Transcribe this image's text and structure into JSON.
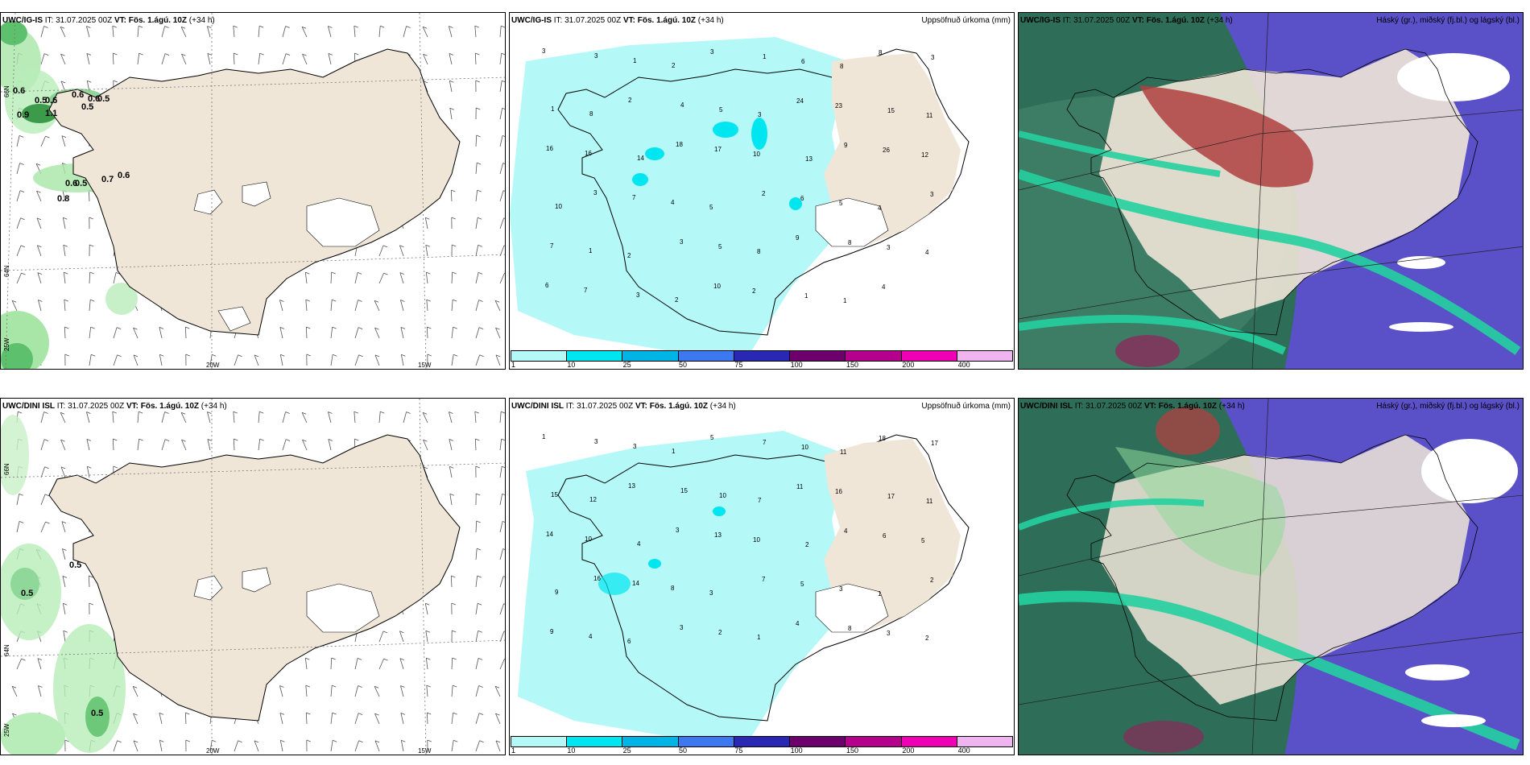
{
  "panels": [
    {
      "model": "UWC/IG-IS",
      "it_label": "IT:",
      "it": "31.07.2025 00Z",
      "vt_label": "VT:",
      "vt": "Fös. 1.ágú. 10Z",
      "lead": "(+34 h)",
      "right": ""
    },
    {
      "model": "UWC/IG-IS",
      "it_label": "IT:",
      "it": "31.07.2025 00Z",
      "vt_label": "VT:",
      "vt": "Fös. 1.ágú. 10Z",
      "lead": "(+34 h)",
      "right": "Uppsöfnuð úrkoma (mm)"
    },
    {
      "model": "UWC/IG-IS",
      "it_label": "IT:",
      "it": "31.07.2025 00Z",
      "vt_label": "VT:",
      "vt": "Fös. 1.ágú. 10Z",
      "lead": "(+34 h)",
      "right": "Háský (gr.), miðský (fj.bl.) og lágský (bl.)"
    },
    {
      "model": "UWC/DINI ISL",
      "it_label": "IT:",
      "it": "31.07.2025 00Z",
      "vt_label": "VT:",
      "vt": "Fös. 1.ágú. 10Z",
      "lead": "(+34 h)",
      "right": ""
    },
    {
      "model": "UWC/DINI ISL",
      "it_label": "IT:",
      "it": "31.07.2025 00Z",
      "vt_label": "VT:",
      "vt": "Fös. 1.ágú. 10Z",
      "lead": "(+34 h)",
      "right": "Uppsöfnuð úrkoma (mm)"
    },
    {
      "model": "UWC/DINI ISL",
      "it_label": "IT:",
      "it": "31.07.2025 00Z",
      "vt_label": "VT:",
      "vt": "Fös. 1.ágú. 10Z",
      "lead": "(+34 h)",
      "right": "Háský (gr.), miðský (fj.bl.) og lágský (bl.)"
    }
  ],
  "grid_labels": {
    "lon_20w": "20W",
    "lon_15w": "15W",
    "lon_25w": "25W",
    "lat_66n": "66N",
    "lat_64n": "64N"
  },
  "wind_gust_values": {
    "top": [
      "0.6",
      "0.5",
      "0.6",
      "0.6",
      "0.5",
      "0.5",
      "0.9",
      "1.1",
      "0.6",
      "0.5",
      "0.6",
      "0.8",
      "0.7",
      "0.6"
    ],
    "bottom": [
      "0.5",
      "0.5",
      "0.5"
    ]
  },
  "precip_legend": {
    "ticks": [
      "1",
      "10",
      "25",
      "50",
      "75",
      "100",
      "150",
      "200",
      "400"
    ],
    "colors": [
      "#b4f8f8",
      "#00e6f0",
      "#00b4e6",
      "#3c78f0",
      "#2828b4",
      "#6e006e",
      "#b4008c",
      "#f000b4",
      "#f0b4f0"
    ]
  },
  "precip_values_top": [
    "3",
    "3",
    "1",
    "2",
    "3",
    "1",
    "6",
    "8",
    "8",
    "3",
    "1",
    "8",
    "2",
    "4",
    "5",
    "3",
    "24",
    "23",
    "15",
    "11",
    "16",
    "16",
    "14",
    "18",
    "17",
    "10",
    "13",
    "9",
    "26",
    "12",
    "10",
    "3",
    "7",
    "4",
    "5",
    "2",
    "6",
    "5",
    "4",
    "3",
    "7",
    "1",
    "2",
    "3",
    "5",
    "8",
    "9",
    "8",
    "3",
    "4",
    "6",
    "7",
    "3",
    "2",
    "10",
    "2",
    "1",
    "1",
    "4"
  ],
  "precip_values_bottom": [
    "1",
    "3",
    "3",
    "1",
    "5",
    "7",
    "10",
    "11",
    "18",
    "17",
    "15",
    "12",
    "13",
    "15",
    "10",
    "7",
    "11",
    "16",
    "17",
    "11",
    "14",
    "10",
    "4",
    "3",
    "13",
    "10",
    "2",
    "4",
    "6",
    "5",
    "9",
    "16",
    "14",
    "8",
    "3",
    "7",
    "5",
    "3",
    "1",
    "2",
    "9",
    "4",
    "6",
    "3",
    "2",
    "1",
    "4",
    "8",
    "3",
    "2"
  ],
  "colors": {
    "land": "#f0e6d8",
    "cloud_high": "#2e6e58",
    "cloud_mid": "#24d0a0",
    "cloud_low": "#5a50c8",
    "cloud_red": "#b04040",
    "precip_light": "#b4f8f8"
  }
}
